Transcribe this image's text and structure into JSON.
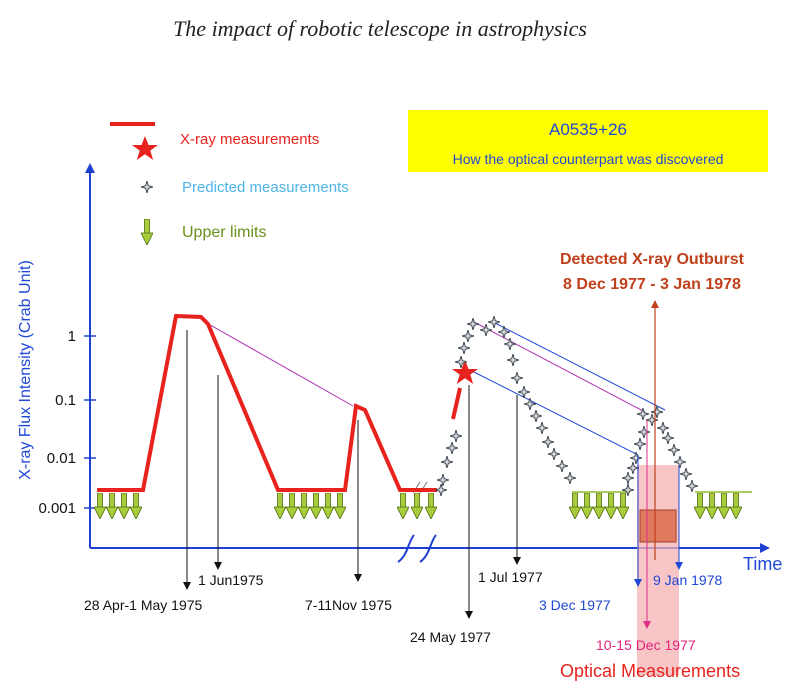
{
  "page": {
    "title": "The impact of robotic telescope in astrophysics"
  },
  "colors": {
    "xray": "#e8231d",
    "predicted": "#4a5560",
    "upper": "#8fb82a",
    "axis": "#1f3fd0",
    "title_box": "#ffff00",
    "outburst": "#c0401c",
    "optical_band": "#f4b2b2",
    "magenta": "#e0308a",
    "blue_label": "#1f48d6",
    "crab_line": "#b030b0",
    "pink_label": "#e3227a",
    "cyan_text": "#4fb4e8",
    "olive_text": "#6a8f1a",
    "dark_red": "#c0401c"
  },
  "chart_data": {
    "type": "line",
    "title_box": {
      "line1": "A0535+26",
      "line2": "How the optical counterpart was discovered"
    },
    "ylabel": "X-ray Flux Intensity (Crab Unit)",
    "xlabel": "Time",
    "y_ticks": [
      "1",
      "0.1",
      "0.01",
      "0.001"
    ],
    "legend": {
      "placement": "top-left",
      "items": [
        {
          "symbol": "line",
          "label": "X-ray measurements"
        },
        {
          "symbol": "star",
          "label": "X-ray measurements"
        },
        {
          "symbol": "cross-star",
          "label": "Predicted measurements"
        },
        {
          "symbol": "arrow",
          "label": "Upper limits"
        }
      ]
    },
    "outburst_label": {
      "line1": "Detected X-ray Outburst",
      "line2": "8 Dec 1977 - 3 Jan 1978"
    },
    "date_labels": [
      "28 Apr-1 May 1975",
      "1 Jun1975",
      "7-11Nov 1975",
      "24 May 1977",
      "1 Jul 1977",
      "3 Dec 1977",
      "9 Jan 1978",
      "10-15 Dec 1977"
    ],
    "optical_label": "Optical Measurements",
    "peak_values_crab": [
      2.0,
      0.07,
      0.3,
      2.0
    ]
  }
}
